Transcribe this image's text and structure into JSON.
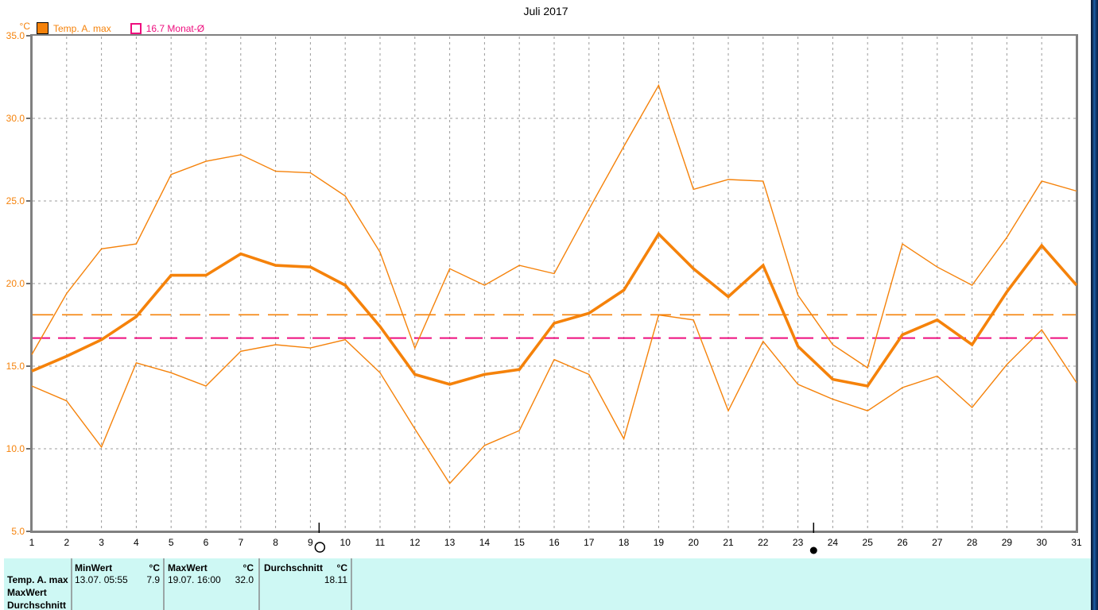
{
  "window": {
    "title": "Juli 2017"
  },
  "legend": {
    "series": {
      "label": "Temp. A. max",
      "swatch_color": "#f5820a"
    },
    "monthly_avg": {
      "label": "16.7 Monat-Ø",
      "swatch_color": "#ee0e7e"
    }
  },
  "y_axis": {
    "unit": "°C",
    "tick_labels": [
      "35.0",
      "30.0",
      "25.0",
      "20.0",
      "15.0",
      "10.0",
      "5.0"
    ]
  },
  "x_axis": {
    "tick_labels": [
      "1",
      "2",
      "3",
      "4",
      "5",
      "6",
      "7",
      "8",
      "9",
      "10",
      "11",
      "12",
      "13",
      "14",
      "15",
      "16",
      "17",
      "18",
      "19",
      "20",
      "21",
      "22",
      "23",
      "24",
      "25",
      "26",
      "27",
      "28",
      "29",
      "30",
      "31"
    ]
  },
  "chart_data": {
    "type": "line",
    "title": "Juli 2017",
    "ylabel": "°C",
    "ylim": [
      5,
      35
    ],
    "xlim": [
      1,
      31
    ],
    "grid": true,
    "x": [
      1,
      2,
      3,
      4,
      5,
      6,
      7,
      8,
      9,
      10,
      11,
      12,
      13,
      14,
      15,
      16,
      17,
      18,
      19,
      20,
      21,
      22,
      23,
      24,
      25,
      26,
      27,
      28,
      29,
      30,
      31
    ],
    "series": [
      {
        "name": "daily-max-envelope",
        "color": "#f5820a",
        "width": 1.4,
        "values": [
          15.7,
          19.4,
          22.1,
          22.4,
          26.6,
          27.4,
          27.8,
          26.8,
          26.7,
          25.3,
          21.9,
          16.1,
          20.9,
          19.9,
          21.1,
          20.6,
          24.5,
          28.3,
          32.0,
          25.7,
          26.3,
          26.2,
          19.3,
          16.3,
          14.9,
          22.4,
          21.0,
          19.9,
          22.8,
          26.2,
          25.6
        ]
      },
      {
        "name": "Temp. A. max",
        "color": "#f5820a",
        "width": 3.6,
        "values": [
          14.7,
          15.6,
          16.6,
          18.0,
          20.5,
          20.5,
          21.8,
          21.1,
          21.0,
          19.9,
          17.4,
          14.5,
          13.9,
          14.5,
          14.8,
          17.6,
          18.2,
          19.6,
          23.0,
          20.9,
          19.2,
          21.1,
          16.2,
          14.2,
          13.8,
          16.9,
          17.8,
          16.3,
          19.5,
          22.3,
          19.9
        ]
      },
      {
        "name": "daily-min-envelope",
        "color": "#f5820a",
        "width": 1.4,
        "values": [
          13.8,
          12.9,
          10.1,
          15.2,
          14.6,
          13.8,
          15.9,
          16.3,
          16.1,
          16.6,
          14.6,
          11.2,
          7.9,
          10.2,
          11.1,
          15.4,
          14.5,
          10.6,
          18.1,
          17.8,
          12.3,
          16.5,
          13.9,
          13.0,
          12.3,
          13.7,
          14.4,
          12.5,
          15.1,
          17.2,
          14.0
        ]
      }
    ],
    "reference_lines": [
      {
        "name": "monthly-average-line",
        "value": 18.11,
        "color": "#f5820a",
        "dash": "26 11",
        "width": 1.6
      },
      {
        "name": "long-term-monthly-average-line",
        "value": 16.7,
        "color": "#ee0e7e",
        "dash": "22 10",
        "width": 2
      }
    ],
    "moon_markers": [
      {
        "type": "full-moon",
        "day": 9.25
      },
      {
        "type": "new-moon",
        "day": 23.45
      }
    ]
  },
  "stats_table": {
    "series_label": "Temp. A. max",
    "extra_row_labels": [
      "MaxWert",
      "Durchschnitt"
    ],
    "min": {
      "header": "MinWert",
      "unit": "°C",
      "datetime": "13.07.  05:55",
      "value": "7.9"
    },
    "max": {
      "header": "MaxWert",
      "unit": "°C",
      "datetime": "19.07.  16:00",
      "value": "32.0"
    },
    "avg": {
      "header": "Durchschnitt",
      "unit": "°C",
      "value": "18.11"
    }
  }
}
